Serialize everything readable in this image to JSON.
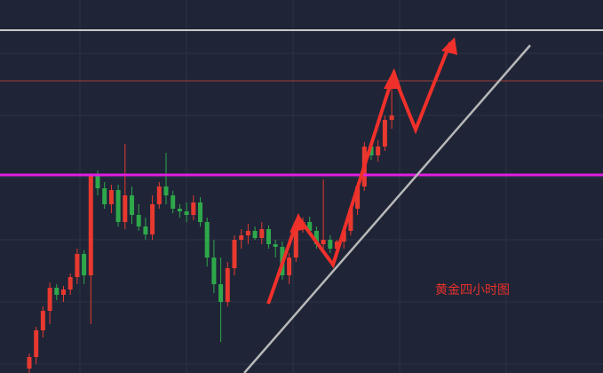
{
  "chart_data": {
    "type": "candlestick",
    "annotation": "黄金四小时图",
    "ylim": [
      0,
      420
    ],
    "up_color": "#e8392f",
    "down_color": "#2ea84a",
    "candles": [
      [
        5,
        22,
        0,
        18
      ],
      [
        18,
        52,
        10,
        48
      ],
      [
        48,
        75,
        40,
        70
      ],
      [
        70,
        102,
        55,
        96
      ],
      [
        96,
        100,
        82,
        88
      ],
      [
        88,
        98,
        80,
        94
      ],
      [
        94,
        112,
        88,
        108
      ],
      [
        108,
        140,
        100,
        134
      ],
      [
        134,
        138,
        100,
        110
      ],
      [
        110,
        225,
        55,
        222
      ],
      [
        222,
        228,
        200,
        208
      ],
      [
        208,
        215,
        185,
        190
      ],
      [
        190,
        212,
        180,
        206
      ],
      [
        206,
        212,
        165,
        170
      ],
      [
        170,
        258,
        162,
        200
      ],
      [
        200,
        210,
        168,
        178
      ],
      [
        178,
        190,
        160,
        165
      ],
      [
        165,
        175,
        150,
        156
      ],
      [
        156,
        200,
        150,
        190
      ],
      [
        190,
        215,
        185,
        210
      ],
      [
        210,
        248,
        190,
        200
      ],
      [
        200,
        205,
        180,
        185
      ],
      [
        185,
        190,
        175,
        182
      ],
      [
        182,
        192,
        170,
        178
      ],
      [
        178,
        200,
        172,
        192
      ],
      [
        192,
        198,
        165,
        170
      ],
      [
        170,
        175,
        120,
        130
      ],
      [
        130,
        150,
        90,
        100
      ],
      [
        100,
        130,
        35,
        80
      ],
      [
        80,
        125,
        75,
        118
      ],
      [
        118,
        155,
        110,
        150
      ],
      [
        150,
        162,
        140,
        155
      ],
      [
        155,
        168,
        145,
        160
      ],
      [
        160,
        165,
        150,
        152
      ],
      [
        152,
        170,
        145,
        162
      ],
      [
        162,
        166,
        140,
        145
      ],
      [
        145,
        150,
        130,
        142
      ],
      [
        142,
        148,
        105,
        110
      ],
      [
        110,
        135,
        100,
        130
      ],
      [
        130,
        170,
        125,
        165
      ],
      [
        165,
        175,
        158,
        170
      ],
      [
        170,
        176,
        155,
        160
      ],
      [
        160,
        165,
        140,
        145
      ],
      [
        145,
        218,
        138,
        150
      ],
      [
        150,
        155,
        135,
        140
      ],
      [
        140,
        150,
        130,
        148
      ],
      [
        148,
        165,
        140,
        160
      ],
      [
        160,
        190,
        155,
        185
      ],
      [
        185,
        215,
        178,
        210
      ],
      [
        210,
        260,
        205,
        255
      ],
      [
        255,
        258,
        240,
        245
      ],
      [
        245,
        262,
        238,
        255
      ],
      [
        255,
        290,
        250,
        285
      ],
      [
        285,
        320,
        275,
        290
      ]
    ]
  }
}
